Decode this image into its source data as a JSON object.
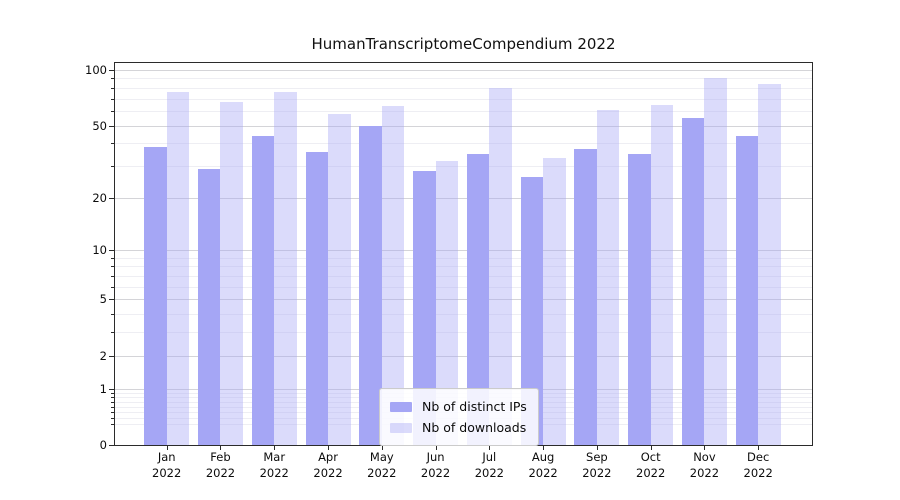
{
  "figure": {
    "background": "#ffffff"
  },
  "chart_data": {
    "type": "bar",
    "title": "HumanTranscriptomeCompendium 2022",
    "categories": [
      "Jan",
      "Feb",
      "Mar",
      "Apr",
      "May",
      "Jun",
      "Jul",
      "Aug",
      "Sep",
      "Oct",
      "Nov",
      "Dec"
    ],
    "x_year_label": "2022",
    "series": [
      {
        "name": "Nb of distinct IPs",
        "color": "#a5a6f5",
        "values": [
          38,
          29,
          44,
          36,
          50,
          28,
          35,
          26,
          37,
          35,
          55,
          44
        ]
      },
      {
        "name": "Nb of downloads",
        "color": "rgba(165,166,245,0.40)",
        "values": [
          76,
          67,
          76,
          58,
          64,
          32,
          80,
          33,
          61,
          65,
          90,
          84
        ]
      }
    ],
    "yscale": "log1p",
    "ylim": [
      0,
      110
    ],
    "y_ticks": [
      100,
      50,
      20,
      10,
      5,
      2,
      1,
      0
    ],
    "y_minor_gridlines": [
      0.3,
      0.4,
      0.5,
      0.6,
      0.7,
      0.8,
      0.9,
      3,
      4,
      6,
      7,
      8,
      9,
      30,
      40,
      60,
      70,
      80,
      90
    ],
    "grid": true,
    "legend_position": "lower center",
    "colors": {
      "major_grid": "#d4d4d8",
      "minor_grid": "#eeeef3",
      "spine": "#2b2b2b",
      "text": "#0c0c0c"
    }
  }
}
